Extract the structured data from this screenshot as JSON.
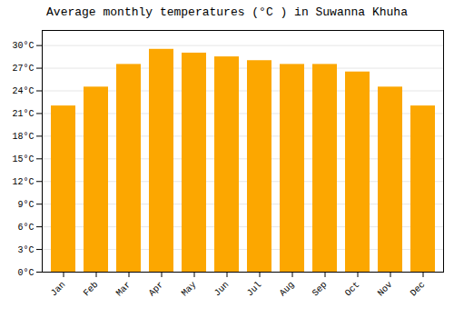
{
  "chart_data": {
    "type": "bar",
    "title": "Average monthly temperatures (°C ) in Suwanna Khuha",
    "categories": [
      "Jan",
      "Feb",
      "Mar",
      "Apr",
      "May",
      "Jun",
      "Jul",
      "Aug",
      "Sep",
      "Oct",
      "Nov",
      "Dec"
    ],
    "values": [
      22.0,
      24.5,
      27.5,
      29.5,
      29.0,
      28.5,
      28.0,
      27.5,
      27.5,
      26.5,
      24.5,
      22.0
    ],
    "color": "#FCA700",
    "ylim": [
      0,
      32
    ],
    "yticks": [
      {
        "value": 0,
        "label": "0°C"
      },
      {
        "value": 3,
        "label": "3°C"
      },
      {
        "value": 6,
        "label": "6°C"
      },
      {
        "value": 9,
        "label": "9°C"
      },
      {
        "value": 12,
        "label": "12°C"
      },
      {
        "value": 15,
        "label": "15°C"
      },
      {
        "value": 18,
        "label": "18°C"
      },
      {
        "value": 21,
        "label": "21°C"
      },
      {
        "value": 24,
        "label": "24°C"
      },
      {
        "value": 27,
        "label": "27°C"
      },
      {
        "value": 30,
        "label": "30°C"
      }
    ],
    "grid": true
  }
}
